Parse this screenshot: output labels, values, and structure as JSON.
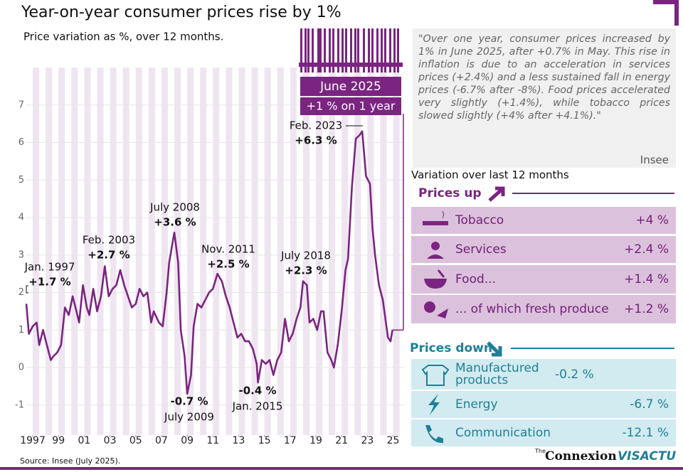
{
  "chart_data": {
    "type": "line",
    "title": "Year-on-year consumer prices rise by 1%",
    "subtitle": "Price variation as %, over 12 months.",
    "x": [
      1997.0,
      1997.2,
      1997.5,
      1997.8,
      1998.0,
      1998.3,
      1998.6,
      1998.9,
      1999.1,
      1999.4,
      1999.7,
      2000.0,
      2000.3,
      2000.6,
      2000.9,
      2001.1,
      2001.4,
      2001.7,
      2001.9,
      2002.2,
      2002.5,
      2002.8,
      2003.1,
      2003.4,
      2003.7,
      2004.0,
      2004.3,
      2004.6,
      2004.9,
      2005.2,
      2005.5,
      2005.8,
      2006.1,
      2006.4,
      2006.7,
      2006.9,
      2007.3,
      2007.6,
      2007.9,
      2008.1,
      2008.5,
      2008.8,
      2009.0,
      2009.3,
      2009.5,
      2009.8,
      2010.0,
      2010.3,
      2010.6,
      2010.9,
      2011.2,
      2011.5,
      2011.85,
      2012.2,
      2012.5,
      2012.8,
      2013.1,
      2013.4,
      2013.7,
      2014.0,
      2014.3,
      2014.6,
      2014.9,
      2015.0,
      2015.3,
      2015.6,
      2015.9,
      2016.2,
      2016.5,
      2016.8,
      2017.1,
      2017.4,
      2017.7,
      2018.0,
      2018.3,
      2018.5,
      2018.8,
      2019.0,
      2019.3,
      2019.6,
      2019.9,
      2020.1,
      2020.4,
      2020.7,
      2020.9,
      2021.2,
      2021.5,
      2021.8,
      2022.0,
      2022.3,
      2022.6,
      2022.9,
      2023.1,
      2023.4,
      2023.7,
      2023.9,
      2024.1,
      2024.4,
      2024.7,
      2024.9,
      2025.1,
      2025.3,
      2025.45
    ],
    "values": [
      1.7,
      0.9,
      1.1,
      1.2,
      0.6,
      1.0,
      0.6,
      0.2,
      0.3,
      0.4,
      0.6,
      1.6,
      1.4,
      1.9,
      1.5,
      1.2,
      2.2,
      1.6,
      1.4,
      2.1,
      1.5,
      1.9,
      2.7,
      1.9,
      2.1,
      2.2,
      2.6,
      2.2,
      1.9,
      1.6,
      1.7,
      2.1,
      1.9,
      2.0,
      1.2,
      1.5,
      1.2,
      1.1,
      2.0,
      2.8,
      3.6,
      2.8,
      1.0,
      0.3,
      -0.7,
      -0.2,
      1.1,
      1.7,
      1.6,
      1.8,
      2.0,
      2.1,
      2.5,
      2.3,
      1.9,
      1.6,
      1.2,
      0.8,
      0.9,
      0.7,
      0.7,
      0.5,
      0.1,
      -0.4,
      0.2,
      0.1,
      0.2,
      -0.2,
      0.2,
      0.4,
      1.3,
      0.7,
      0.9,
      1.3,
      1.6,
      2.3,
      2.2,
      1.2,
      1.3,
      1.0,
      1.5,
      1.5,
      0.4,
      0.2,
      0.0,
      0.6,
      1.5,
      2.6,
      2.9,
      4.8,
      6.1,
      6.2,
      6.3,
      5.1,
      4.9,
      3.7,
      3.0,
      2.2,
      1.8,
      1.3,
      0.8,
      0.7,
      1.0
    ],
    "color": "#7b2481",
    "xlim": [
      1997.0,
      2026.3
    ],
    "ylim": [
      -1.8,
      8
    ],
    "xticks": [
      {
        "value": 1997.5,
        "label": "1997"
      },
      {
        "value": 1999.5,
        "label": "99"
      },
      {
        "value": 2001.5,
        "label": "01"
      },
      {
        "value": 2003.5,
        "label": "03"
      },
      {
        "value": 2005.5,
        "label": "05"
      },
      {
        "value": 2007.5,
        "label": "07"
      },
      {
        "value": 2009.5,
        "label": "09"
      },
      {
        "value": 2011.5,
        "label": "11"
      },
      {
        "value": 2013.5,
        "label": "13"
      },
      {
        "value": 2015.5,
        "label": "15"
      },
      {
        "value": 2017.5,
        "label": "17"
      },
      {
        "value": 2019.5,
        "label": "19"
      },
      {
        "value": 2021.5,
        "label": "21"
      },
      {
        "value": 2023.5,
        "label": "23"
      },
      {
        "value": 2025.5,
        "label": "25"
      }
    ],
    "yticks": [
      -1,
      0,
      1,
      2,
      3,
      4,
      5,
      6,
      7
    ],
    "grid": true,
    "annotations": [
      {
        "date": "Jan. 1997",
        "value": "+1.7 %"
      },
      {
        "date": "Feb. 2003",
        "value": "+2.7 %"
      },
      {
        "date": "July 2008",
        "value": "+3.6 %"
      },
      {
        "date": "Nov. 2011",
        "value": "+2.5 %"
      },
      {
        "date": "July 2018",
        "value": "+2.3 %"
      },
      {
        "date": "Feb. 2023",
        "value": "+6.3 %"
      },
      {
        "date": "July 2009",
        "value": "-0.7 %"
      },
      {
        "date": "Jan. 2015",
        "value": "-0.4 %"
      }
    ],
    "latest": {
      "date": "June 2025",
      "value": "+1 % on 1 year"
    }
  },
  "quote": {
    "text": "\"Over one year, consumer prices increased by 1% in June 2025, after +0.7% in May. This rise in inflation is due to an acceleration in services prices (+2.4%) and a less sustained fall in energy prices (-6.7% after -8%). Food prices accelerated very slightly (+1.4%), while tobacco prices slowed slightly (+4% after +4.1%).\"",
    "source": "Insee"
  },
  "panel": {
    "title": "Variation over last 12 months",
    "up": {
      "title": "Prices up",
      "items": [
        {
          "name": "Tobacco",
          "value": "+4 %"
        },
        {
          "name": "Services",
          "value": "+2.4 %"
        },
        {
          "name": "Food...",
          "value": "+1.4 %"
        },
        {
          "name": "... of which fresh produce",
          "value": "+1.2 %"
        }
      ]
    },
    "down": {
      "title": "Prices down",
      "items": [
        {
          "name": "Manufactured products",
          "value": "-0.2 %"
        },
        {
          "name": "Energy",
          "value": "-6.7 %"
        },
        {
          "name": "Communication",
          "value": "-12.1 %"
        }
      ]
    }
  },
  "footer": {
    "source": "Source: Insee (July 2025).",
    "brand": "Connexion",
    "brand_small": "The",
    "brand2": "VISACTU"
  }
}
